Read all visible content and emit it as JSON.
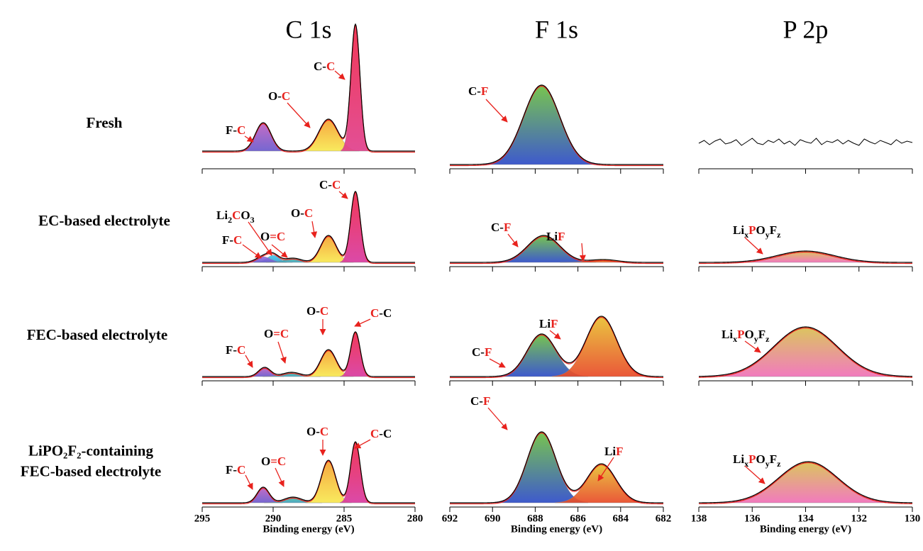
{
  "chart_data": {
    "type": "spectra-grid",
    "columns": [
      {
        "title": "C 1s",
        "xlim": [
          295,
          280
        ],
        "xticks": [
          295,
          290,
          285,
          280
        ],
        "xlabel": "Binding energy (eV)"
      },
      {
        "title": "F 1s",
        "xlim": [
          692,
          682
        ],
        "xticks": [
          692,
          690,
          688,
          686,
          684,
          682
        ],
        "xlabel": "Binding energy (eV)"
      },
      {
        "title": "P 2p",
        "xlim": [
          138,
          130
        ],
        "xticks": [
          138,
          136,
          134,
          132,
          130
        ],
        "xlabel": "Binding energy (eV)"
      }
    ],
    "rows": [
      {
        "label": [
          "Fresh"
        ]
      },
      {
        "label": [
          "EC-based electrolyte"
        ]
      },
      {
        "label": [
          "FEC-based electrolyte"
        ]
      },
      {
        "label": [
          "LiPO₂F₂-containing",
          "FEC-based electrolyte"
        ]
      }
    ],
    "panels": [
      [
        {
          "peaks": [
            {
              "center": 290.7,
              "fwhm": 1.3,
              "height": 40,
              "colors": [
                "#c060c0",
                "#6a5acd"
              ],
              "label": [
                {
                  "text": "F-"
                },
                {
                  "text": "C",
                  "color": "#e8221d"
                }
              ]
            },
            {
              "center": 286.1,
              "fwhm": 1.6,
              "height": 45,
              "colors": [
                "#f5a030",
                "#f8e850"
              ],
              "label": [
                {
                  "text": "O-"
                },
                {
                  "text": "C",
                  "color": "#e8221d"
                }
              ]
            },
            {
              "center": 284.2,
              "fwhm": 0.75,
              "height": 178,
              "colors": [
                "#f0284a",
                "#e0408c"
              ],
              "label": [
                {
                  "text": "C-"
                },
                {
                  "text": "C",
                  "color": "#e8221d"
                }
              ]
            }
          ]
        },
        {
          "peaks": [
            {
              "center": 687.7,
              "fwhm": 2.0,
              "height": 112,
              "colors": [
                "#6cc040",
                "#2e4cc8"
              ],
              "label": [
                {
                  "text": "C-"
                },
                {
                  "text": "F",
                  "color": "#e8221d"
                }
              ]
            }
          ]
        },
        {
          "peaks": [],
          "noise": {
            "x": [
              138,
              137.8,
              137.6,
              137.4,
              137.2,
              137,
              136.8,
              136.6,
              136.4,
              136.2,
              136,
              135.8,
              135.6,
              135.4,
              135.2,
              135,
              134.8,
              134.6,
              134.4,
              134.2,
              134,
              133.8,
              133.6,
              133.4,
              133.2,
              133,
              132.8,
              132.6,
              132.4,
              132.2,
              132,
              131.8,
              131.6,
              131.4,
              131.2,
              131,
              130.8,
              130.6,
              130.4,
              130.2,
              130
            ],
            "values": [
              30,
              34,
              28,
              33,
              36,
              29,
              31,
              35,
              27,
              32,
              37,
              30,
              28,
              34,
              31,
              36,
              29,
              33,
              27,
              35,
              32,
              30,
              37,
              28,
              33,
              31,
              35,
              29,
              34,
              30,
              27,
              36,
              32,
              29,
              34,
              31,
              28,
              35,
              30,
              33,
              31
            ]
          }
        }
      ],
      [
        {
          "peaks": [
            {
              "center": 290.0,
              "fwhm": 1.0,
              "height": 10,
              "colors": [
                "#40c8e8",
                "#3aa0d8"
              ],
              "label": [
                {
                  "text": "Li"
                },
                {
                  "text": "2",
                  "sub": true
                },
                {
                  "text": "C",
                  "color": "#e8221d"
                },
                {
                  "text": "O"
                },
                {
                  "text": "3",
                  "sub": true
                }
              ]
            },
            {
              "center": 290.7,
              "fwhm": 1.2,
              "height": 8,
              "colors": [
                "#9a70e0",
                "#6a5acd"
              ],
              "label": [
                {
                  "text": "F-"
                },
                {
                  "text": "C",
                  "color": "#e8221d"
                }
              ]
            },
            {
              "center": 288.6,
              "fwhm": 1.4,
              "height": 6,
              "colors": [
                "#50c0a0",
                "#40a0c0"
              ],
              "label": [
                {
                  "text": "O"
                },
                {
                  "text": "=C",
                  "color": "#e8221d"
                }
              ]
            },
            {
              "center": 286.1,
              "fwhm": 1.3,
              "height": 38,
              "colors": [
                "#f5a030",
                "#f8e850"
              ],
              "label": [
                {
                  "text": "O-"
                },
                {
                  "text": "C",
                  "color": "#e8221d"
                }
              ]
            },
            {
              "center": 284.2,
              "fwhm": 0.8,
              "height": 100,
              "colors": [
                "#f0284a",
                "#d83aa0"
              ],
              "label": [
                {
                  "text": "C-"
                },
                {
                  "text": "C",
                  "color": "#e8221d"
                }
              ]
            }
          ]
        },
        {
          "peaks": [
            {
              "center": 687.6,
              "fwhm": 1.8,
              "height": 38,
              "colors": [
                "#6cc040",
                "#2e4cc8"
              ],
              "label": [
                {
                  "text": "C-"
                },
                {
                  "text": "F",
                  "color": "#e8221d"
                }
              ]
            },
            {
              "center": 684.8,
              "fwhm": 1.5,
              "height": 4,
              "colors": [
                "#e8c030",
                "#e84a28"
              ],
              "label": [
                {
                  "text": "Li"
                },
                {
                  "text": "F",
                  "color": "#e8221d"
                }
              ]
            }
          ]
        },
        {
          "peaks": [
            {
              "center": 134.0,
              "fwhm": 2.5,
              "height": 16,
              "colors": [
                "#d8c050",
                "#f070b8"
              ],
              "label": [
                {
                  "text": "Li"
                },
                {
                  "text": "x",
                  "sub": true
                },
                {
                  "text": "P",
                  "color": "#e8221d"
                },
                {
                  "text": "O"
                },
                {
                  "text": "y",
                  "sub": true
                },
                {
                  "text": "F"
                },
                {
                  "text": "z",
                  "sub": true
                }
              ]
            }
          ]
        }
      ],
      [
        {
          "peaks": [
            {
              "center": 290.6,
              "fwhm": 1.0,
              "height": 13,
              "colors": [
                "#c060c0",
                "#6a5acd"
              ],
              "label": [
                {
                  "text": "F-"
                },
                {
                  "text": "C",
                  "color": "#e8221d"
                }
              ]
            },
            {
              "center": 288.7,
              "fwhm": 1.5,
              "height": 6,
              "colors": [
                "#50c0a0",
                "#40a0c0"
              ],
              "label": [
                {
                  "text": "O"
                },
                {
                  "text": "=C",
                  "color": "#e8221d"
                }
              ]
            },
            {
              "center": 286.1,
              "fwhm": 1.3,
              "height": 38,
              "colors": [
                "#f5a030",
                "#f8e850"
              ],
              "label": [
                {
                  "text": "O-"
                },
                {
                  "text": "C",
                  "color": "#e8221d"
                }
              ]
            },
            {
              "center": 284.2,
              "fwhm": 0.8,
              "height": 63,
              "colors": [
                "#f0284a",
                "#d83aa0"
              ],
              "label": [
                {
                  "text": "C",
                  "color": "#e8221d"
                },
                {
                  "text": "-C"
                }
              ]
            }
          ]
        },
        {
          "peaks": [
            {
              "center": 687.7,
              "fwhm": 1.6,
              "height": 60,
              "colors": [
                "#6cc040",
                "#2e4cc8"
              ],
              "label": [
                {
                  "text": "C-"
                },
                {
                  "text": "F",
                  "color": "#e8221d"
                }
              ]
            },
            {
              "center": 684.9,
              "fwhm": 1.7,
              "height": 85,
              "colors": [
                "#e8c030",
                "#e84a28"
              ],
              "label": [
                {
                  "text": "Li"
                },
                {
                  "text": "F",
                  "color": "#e8221d"
                }
              ]
            }
          ]
        },
        {
          "peaks": [
            {
              "center": 134.0,
              "fwhm": 2.8,
              "height": 70,
              "colors": [
                "#d8c050",
                "#f070b8"
              ],
              "label": [
                {
                  "text": "Li"
                },
                {
                  "text": "x",
                  "sub": true
                },
                {
                  "text": "P",
                  "color": "#e8221d"
                },
                {
                  "text": "O"
                },
                {
                  "text": "y",
                  "sub": true
                },
                {
                  "text": "F"
                },
                {
                  "text": "z",
                  "sub": true
                }
              ]
            }
          ]
        }
      ],
      [
        {
          "peaks": [
            {
              "center": 290.7,
              "fwhm": 1.0,
              "height": 22,
              "colors": [
                "#c060c0",
                "#6a5acd"
              ],
              "label": [
                {
                  "text": "F-"
                },
                {
                  "text": "C",
                  "color": "#e8221d"
                }
              ]
            },
            {
              "center": 288.6,
              "fwhm": 1.5,
              "height": 8,
              "colors": [
                "#50c0a0",
                "#40a0c0"
              ],
              "label": [
                {
                  "text": "O"
                },
                {
                  "text": "=C",
                  "color": "#e8221d"
                }
              ]
            },
            {
              "center": 286.1,
              "fwhm": 1.2,
              "height": 60,
              "colors": [
                "#f5a030",
                "#f8e850"
              ],
              "label": [
                {
                  "text": "O-"
                },
                {
                  "text": "C",
                  "color": "#e8221d"
                }
              ]
            },
            {
              "center": 284.2,
              "fwhm": 0.8,
              "height": 86,
              "colors": [
                "#f0284a",
                "#d83aa0"
              ],
              "label": [
                {
                  "text": "C",
                  "color": "#e8221d"
                },
                {
                  "text": "-C"
                }
              ]
            }
          ]
        },
        {
          "peaks": [
            {
              "center": 687.7,
              "fwhm": 1.6,
              "height": 100,
              "colors": [
                "#6cc040",
                "#2e4cc8"
              ],
              "label": [
                {
                  "text": "C-"
                },
                {
                  "text": "F",
                  "color": "#e8221d"
                }
              ]
            },
            {
              "center": 684.9,
              "fwhm": 1.6,
              "height": 55,
              "colors": [
                "#e8c030",
                "#e84a28"
              ],
              "label": [
                {
                  "text": "Li"
                },
                {
                  "text": "F",
                  "color": "#e8221d"
                }
              ]
            }
          ]
        },
        {
          "peaks": [
            {
              "center": 133.9,
              "fwhm": 2.6,
              "height": 58,
              "colors": [
                "#d8c050",
                "#f070b8"
              ],
              "label": [
                {
                  "text": "Li"
                },
                {
                  "text": "x",
                  "sub": true
                },
                {
                  "text": "P",
                  "color": "#e8221d"
                },
                {
                  "text": "O"
                },
                {
                  "text": "y",
                  "sub": true
                },
                {
                  "text": "F"
                },
                {
                  "text": "z",
                  "sub": true
                }
              ]
            }
          ]
        }
      ]
    ]
  }
}
